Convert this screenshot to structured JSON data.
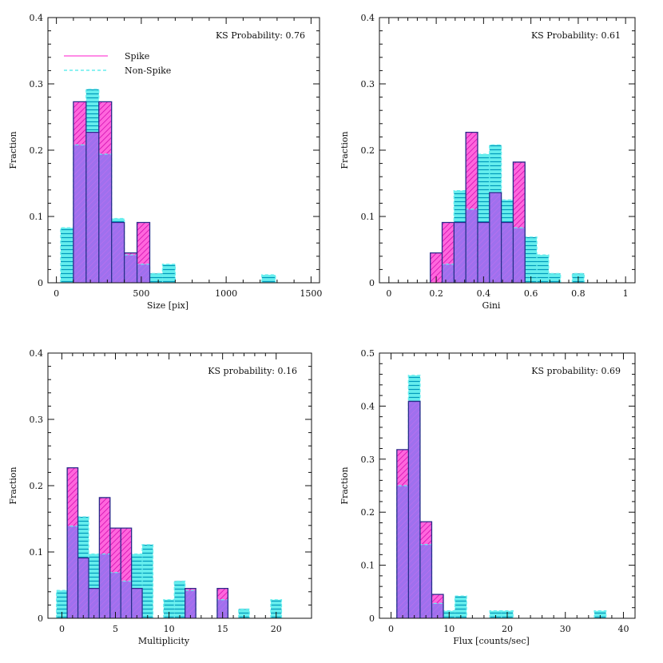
{
  "colors": {
    "spike": "#ff66dd",
    "spike_hatch": "#cc00aa",
    "nonspike": "#66eeee",
    "nonspike_hatch": "#0099bb",
    "overlap": "#9f70ee",
    "axis": "#111111"
  },
  "legend": {
    "spike_label": "Spike",
    "nonspike_label": "Non-Spike"
  },
  "chart_data": [
    {
      "type": "histogram",
      "id": "size",
      "xlabel": "Size [pix]",
      "ylabel": "Fraction",
      "annotation": "KS Probability: 0.76",
      "xlim": [
        -50,
        1550
      ],
      "ylim": [
        0,
        0.4
      ],
      "xticks": [
        0,
        500,
        1000,
        1500
      ],
      "yticks": [
        0,
        0.1,
        0.2,
        0.3,
        0.4
      ],
      "xtick_labels": [
        "0",
        "500",
        "1000",
        "1500"
      ],
      "ytick_labels": [
        "0",
        "0.1",
        "0.2",
        "0.3",
        "0.4"
      ],
      "bin_edges": [
        25,
        100,
        175,
        250,
        325,
        400,
        475,
        550,
        625,
        700
      ],
      "extra_bins": [
        {
          "lo": 1210,
          "hi": 1290,
          "spike": 0,
          "nonspike": 0.012
        }
      ],
      "series": [
        {
          "name": "Spike",
          "values": [
            0,
            0.273,
            0.227,
            0.273,
            0.091,
            0.045,
            0.091,
            0,
            0
          ]
        },
        {
          "name": "Non-Spike",
          "values": [
            0.083,
            0.208,
            0.292,
            0.194,
            0.097,
            0.042,
            0.028,
            0.014,
            0.028
          ]
        }
      ],
      "show_legend": true
    },
    {
      "type": "histogram",
      "id": "gini",
      "xlabel": "Gini",
      "ylabel": "Fraction",
      "annotation": "KS Probability: 0.61",
      "xlim": [
        -0.04,
        1.04
      ],
      "ylim": [
        0,
        0.4
      ],
      "xticks": [
        0,
        0.2,
        0.4,
        0.6,
        0.8,
        1
      ],
      "yticks": [
        0,
        0.1,
        0.2,
        0.3,
        0.4
      ],
      "xtick_labels": [
        "0",
        "0.2",
        "0.4",
        "0.6",
        "0.8",
        "1"
      ],
      "ytick_labels": [
        "0",
        "0.1",
        "0.2",
        "0.3",
        "0.4"
      ],
      "bin_edges": [
        0.175,
        0.225,
        0.275,
        0.325,
        0.375,
        0.425,
        0.475,
        0.525,
        0.575,
        0.625,
        0.675,
        0.725,
        0.775,
        0.825
      ],
      "series": [
        {
          "name": "Spike",
          "values": [
            0.045,
            0.091,
            0.091,
            0.227,
            0.091,
            0.136,
            0.091,
            0.182,
            0,
            0,
            0,
            0,
            0
          ]
        },
        {
          "name": "Non-Spike",
          "values": [
            0,
            0.028,
            0.139,
            0.111,
            0.194,
            0.208,
            0.125,
            0.083,
            0.069,
            0.042,
            0.014,
            0,
            0.014
          ]
        }
      ],
      "show_legend": false
    },
    {
      "type": "histogram",
      "id": "multiplicity",
      "xlabel": "Multiplicity",
      "ylabel": "Fraction",
      "annotation": "KS probability: 0.16",
      "xlim": [
        -1.3,
        23.3
      ],
      "ylim": [
        0,
        0.4
      ],
      "xticks": [
        0,
        5,
        10,
        15,
        20
      ],
      "yticks": [
        0,
        0.1,
        0.2,
        0.3,
        0.4
      ],
      "xtick_labels": [
        "0",
        "5",
        "10",
        "15",
        "20"
      ],
      "ytick_labels": [
        "0",
        "0.1",
        "0.2",
        "0.3",
        "0.4"
      ],
      "bin_edges": [
        -0.5,
        0.5,
        1.5,
        2.5,
        3.5,
        4.5,
        5.5,
        6.5,
        7.5,
        8.5,
        9.5,
        10.5,
        11.5,
        12.5,
        13.5,
        14.5,
        15.5,
        16.5,
        17.5,
        18.5,
        19.5,
        20.5
      ],
      "series": [
        {
          "name": "Spike",
          "values": [
            0,
            0.227,
            0.091,
            0.045,
            0.182,
            0.136,
            0.136,
            0.045,
            0,
            0,
            0,
            0,
            0.045,
            0,
            0,
            0.045,
            0,
            0,
            0,
            0,
            0
          ]
        },
        {
          "name": "Non-Spike",
          "values": [
            0.042,
            0.139,
            0.153,
            0.097,
            0.097,
            0.069,
            0.056,
            0.097,
            0.111,
            0,
            0.028,
            0.056,
            0.042,
            0,
            0,
            0.028,
            0,
            0.014,
            0,
            0,
            0.028
          ]
        }
      ],
      "show_legend": false
    },
    {
      "type": "histogram",
      "id": "flux",
      "xlabel": "Flux [counts/sec]",
      "ylabel": "Fraction",
      "annotation": "KS probability: 0.69",
      "xlim": [
        -2,
        42
      ],
      "ylim": [
        0,
        0.5
      ],
      "xticks": [
        0,
        10,
        20,
        30,
        40
      ],
      "yticks": [
        0,
        0.1,
        0.2,
        0.3,
        0.4,
        0.5
      ],
      "xtick_labels": [
        "0",
        "10",
        "20",
        "30",
        "40"
      ],
      "ytick_labels": [
        "0",
        "0.1",
        "0.2",
        "0.3",
        "0.4",
        "0.5"
      ],
      "bin_edges": [
        1,
        3,
        5,
        7,
        9,
        11,
        13,
        15,
        17,
        19,
        21,
        23,
        25,
        27,
        29,
        31,
        33,
        35,
        37
      ],
      "series": [
        {
          "name": "Spike",
          "values": [
            0.318,
            0.409,
            0.182,
            0.045,
            0,
            0,
            0,
            0,
            0,
            0,
            0,
            0,
            0,
            0,
            0,
            0,
            0,
            0
          ]
        },
        {
          "name": "Non-Spike",
          "values": [
            0.25,
            0.458,
            0.139,
            0.028,
            0.014,
            0.042,
            0,
            0,
            0.014,
            0.014,
            0,
            0,
            0,
            0,
            0,
            0,
            0,
            0.014
          ]
        }
      ],
      "show_legend": false
    }
  ]
}
